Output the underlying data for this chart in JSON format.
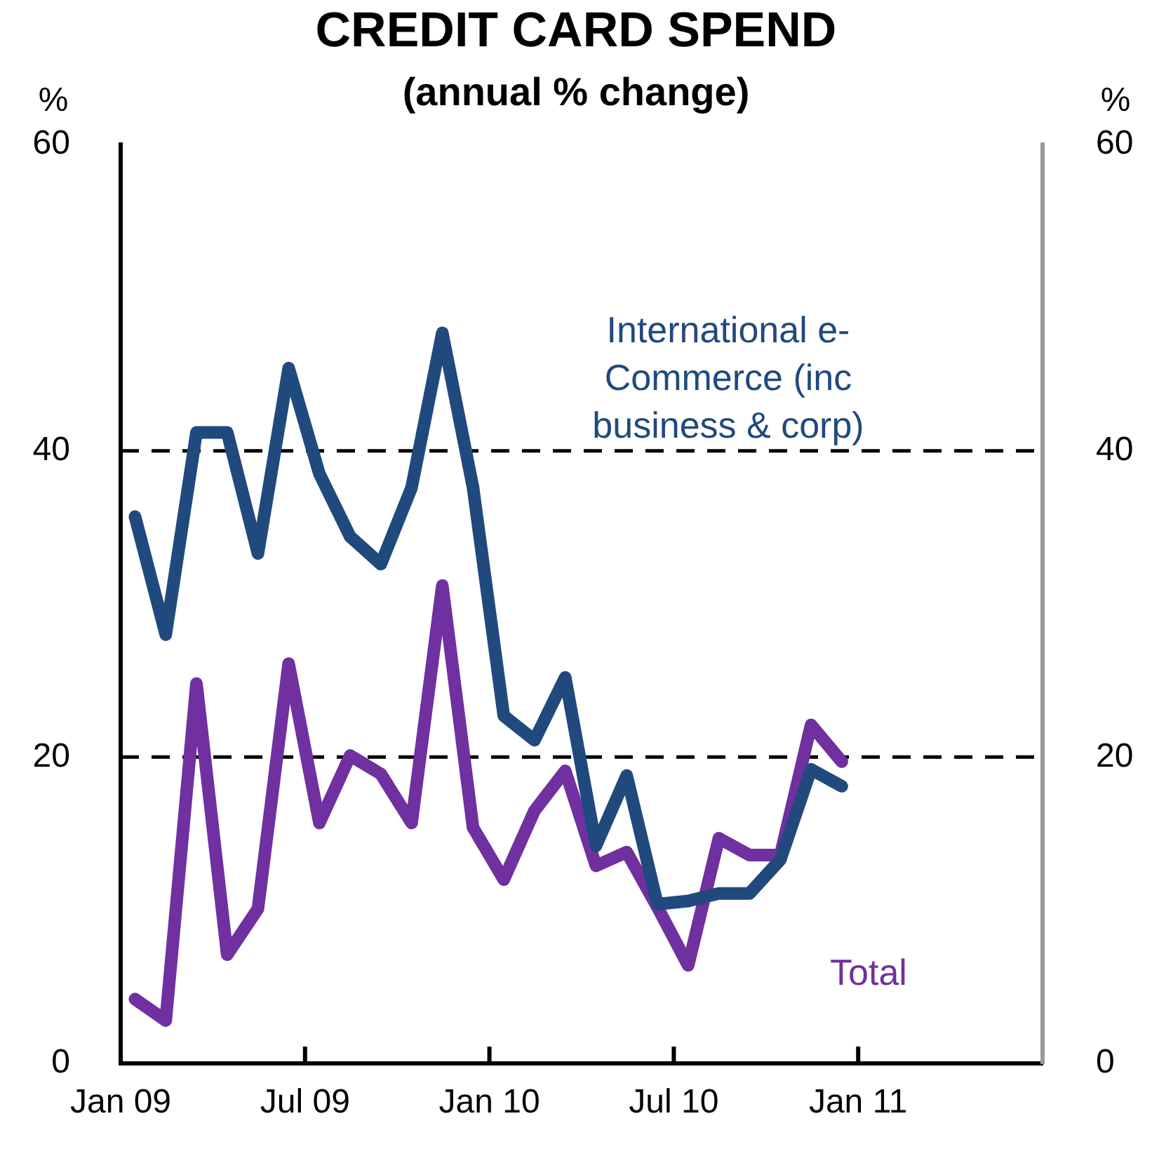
{
  "chart_data": {
    "type": "line",
    "title": "CREDIT CARD SPEND",
    "subtitle": "(annual % change)",
    "ylabel": "%",
    "y2label": "%",
    "x": [
      "2009-01-15",
      "2009-02-15",
      "2009-03-15",
      "2009-04-15",
      "2009-05-15",
      "2009-06-15",
      "2009-07-15",
      "2009-08-15",
      "2009-09-15",
      "2009-10-15",
      "2009-11-15",
      "2009-12-15",
      "2010-01-15",
      "2010-02-15",
      "2010-03-15",
      "2010-04-15",
      "2010-05-15",
      "2010-06-15",
      "2010-07-15",
      "2010-08-15",
      "2010-09-15",
      "2010-10-15",
      "2010-11-15",
      "2010-12-15"
    ],
    "series": [
      {
        "name": "International e-Commerce (inc business & corp)",
        "color": "#204a7e",
        "values": [
          35.7,
          28.0,
          41.2,
          41.2,
          33.3,
          45.4,
          38.5,
          34.4,
          32.6,
          37.6,
          47.7,
          37.6,
          22.7,
          21.1,
          25.2,
          14.2,
          18.8,
          10.4,
          10.6,
          11.1,
          11.1,
          13.3,
          19.2,
          18.1
        ]
      },
      {
        "name": "Total",
        "color": "#7030a0",
        "values": [
          4.2,
          2.8,
          24.8,
          7.1,
          10.1,
          26.1,
          15.7,
          20.1,
          18.9,
          15.7,
          31.2,
          15.4,
          12.0,
          16.5,
          19.1,
          12.9,
          13.8,
          10.2,
          6.4,
          14.7,
          13.6,
          13.6,
          22.1,
          19.7
        ]
      }
    ],
    "xlim": [
      "2009-01",
      "2011-07"
    ],
    "xticks": [
      {
        "value": "2009-01",
        "label": "Jan 09"
      },
      {
        "value": "2009-07",
        "label": "Jul 09"
      },
      {
        "value": "2010-01",
        "label": "Jan 10"
      },
      {
        "value": "2010-07",
        "label": "Jul 10"
      },
      {
        "value": "2011-01",
        "label": "Jan 11"
      }
    ],
    "ylim": [
      0,
      60
    ],
    "yticks": [
      0,
      20,
      40,
      60
    ],
    "y2lim": [
      0,
      60
    ],
    "y2ticks": [
      0,
      20,
      40,
      60
    ],
    "grid": "y",
    "legend": false,
    "marker": "none",
    "line_style": "solid"
  }
}
